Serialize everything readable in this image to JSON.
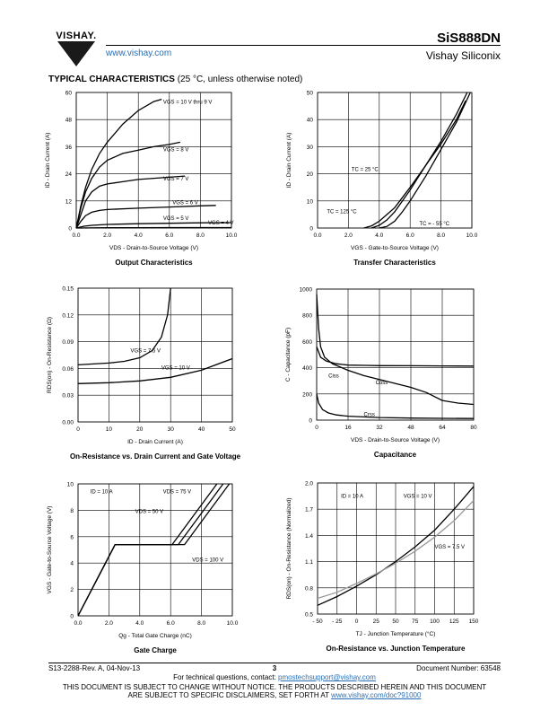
{
  "header": {
    "logo_text": "VISHAY.",
    "url": "www.vishay.com",
    "part_number": "SiS888DN",
    "company": "Vishay Siliconix"
  },
  "section": {
    "title": "TYPICAL CHARACTERISTICS",
    "condition": "(25 °C, unless otherwise noted)"
  },
  "chart_data": [
    {
      "type": "line",
      "title": "Output Characteristics",
      "xlabel": "VDS - Drain-to-Source Voltage (V)",
      "ylabel": "ID - Drain Current (A)",
      "xlim": [
        0,
        10
      ],
      "ylim": [
        0,
        60
      ],
      "xticks": [
        "0.0",
        "2.0",
        "4.0",
        "6.0",
        "8.0",
        "10.0"
      ],
      "yticks": [
        "0",
        "12",
        "24",
        "36",
        "48",
        "60"
      ],
      "series": [
        {
          "name": "VGS = 10 V thru 9 V",
          "x": [
            0,
            0.3,
            0.6,
            1,
            1.5,
            2,
            2.5,
            3,
            3.5,
            4,
            4.5,
            5,
            5.5
          ],
          "y": [
            0,
            10,
            18,
            26,
            33,
            38,
            42,
            46,
            49,
            52,
            54,
            56,
            57
          ]
        },
        {
          "name": "VGS = 8 V",
          "x": [
            0,
            0.3,
            0.6,
            1,
            1.5,
            2,
            2.5,
            3,
            4,
            5,
            6,
            6.7
          ],
          "y": [
            0,
            9,
            16,
            22,
            27,
            30,
            31.5,
            33,
            34.5,
            36,
            37,
            38
          ]
        },
        {
          "name": "VGS = 7 V",
          "x": [
            0,
            0.3,
            0.6,
            1,
            1.5,
            2,
            3,
            4,
            5,
            6,
            7
          ],
          "y": [
            0,
            6,
            12,
            16,
            18.5,
            19.5,
            20.5,
            21.5,
            22,
            22.5,
            23
          ]
        },
        {
          "name": "VGS = 6 V",
          "x": [
            0,
            0.3,
            0.6,
            1,
            1.5,
            2,
            4,
            6,
            8,
            9
          ],
          "y": [
            0,
            3,
            5.5,
            7,
            7.8,
            8.2,
            8.8,
            9.3,
            9.8,
            10
          ]
        },
        {
          "name": "VGS = 5 V",
          "x": [
            0,
            0.5,
            1,
            2,
            4,
            6,
            8,
            10
          ],
          "y": [
            0,
            0.8,
            1.2,
            1.6,
            1.9,
            2.1,
            2.3,
            2.4
          ]
        },
        {
          "name": "VGS = 4 V",
          "x": [
            0,
            2,
            4,
            6,
            8,
            10
          ],
          "y": [
            0,
            0.1,
            0.15,
            0.2,
            0.2,
            0.2
          ]
        }
      ],
      "annotations": [
        "VGS = 10 V thru 9 V",
        "VGS = 8 V",
        "VGS = 7 V",
        "VGS = 6 V",
        "VGS = 5 V",
        "VGS = 4 V"
      ]
    },
    {
      "type": "line",
      "title": "Transfer Characteristics",
      "xlabel": "VGS - Gate-to-Source Voltage (V)",
      "ylabel": "ID - Drain Current (A)",
      "xlim": [
        0,
        10
      ],
      "ylim": [
        0,
        50
      ],
      "xticks": [
        "0.0",
        "2.0",
        "4.0",
        "6.0",
        "8.0",
        "10.0"
      ],
      "yticks": [
        "0",
        "10",
        "20",
        "30",
        "40",
        "50"
      ],
      "series": [
        {
          "name": "TC = 25 °C",
          "x": [
            3.5,
            4.0,
            4.5,
            5,
            6,
            7,
            8,
            9,
            9.7
          ],
          "y": [
            0,
            1,
            3,
            6,
            14,
            23,
            32,
            42,
            50
          ]
        },
        {
          "name": "TC = 125 °C",
          "x": [
            3.0,
            3.5,
            4.0,
            4.5,
            5,
            6,
            7,
            8,
            9,
            9.6
          ],
          "y": [
            0,
            0.8,
            2.5,
            5,
            7.5,
            15,
            23,
            31,
            40,
            47
          ]
        },
        {
          "name": "TC = - 55 °C",
          "x": [
            4.0,
            4.5,
            5,
            5.5,
            6,
            7,
            8,
            9,
            9.9
          ],
          "y": [
            0,
            0.6,
            2.5,
            6,
            10,
            19,
            29,
            39,
            50
          ]
        }
      ],
      "annotations": [
        "TC = 25 °C",
        "TC = 125 °C",
        "TC = - 55 °C"
      ]
    },
    {
      "type": "line",
      "title": "On-Resistance vs. Drain Current and Gate Voltage",
      "xlabel": "ID - Drain Current (A)",
      "ylabel": "RDS(on) - On-Resistance (Ω)",
      "xlim": [
        0,
        50
      ],
      "ylim": [
        0,
        0.15
      ],
      "xticks": [
        "0",
        "10",
        "20",
        "30",
        "40",
        "50"
      ],
      "yticks": [
        "0.00",
        "0.03",
        "0.06",
        "0.09",
        "0.12",
        "0.15"
      ],
      "series": [
        {
          "name": "VGS = 7.5 V",
          "x": [
            0,
            5,
            10,
            15,
            20,
            24,
            27,
            29,
            30
          ],
          "y": [
            0.064,
            0.065,
            0.066,
            0.068,
            0.072,
            0.08,
            0.095,
            0.12,
            0.15
          ]
        },
        {
          "name": "VGS = 10 V",
          "x": [
            0,
            10,
            20,
            30,
            40,
            50
          ],
          "y": [
            0.043,
            0.044,
            0.046,
            0.05,
            0.058,
            0.071
          ]
        }
      ],
      "annotations": [
        "VGS = 7.5 V",
        "VGS = 10 V"
      ]
    },
    {
      "type": "line",
      "title": "Capacitance",
      "xlabel": "VDS - Drain-to-Source Voltage (V)",
      "ylabel": "C - Capacitance (pF)",
      "xlim": [
        0,
        80
      ],
      "ylim": [
        0,
        1000
      ],
      "xticks": [
        "0",
        "16",
        "32",
        "48",
        "64",
        "80"
      ],
      "yticks": [
        "0",
        "200",
        "400",
        "600",
        "800",
        "1000"
      ],
      "series": [
        {
          "name": "Ciss",
          "x": [
            0,
            2,
            5,
            10,
            16,
            25,
            32,
            48,
            64,
            80
          ],
          "y": [
            560,
            480,
            450,
            430,
            420,
            418,
            416,
            415,
            414,
            412
          ]
        },
        {
          "name": "Coss",
          "x": [
            0,
            1,
            2,
            4,
            8,
            16,
            24,
            32,
            48,
            56,
            64,
            72,
            80
          ],
          "y": [
            960,
            700,
            560,
            480,
            430,
            380,
            340,
            310,
            250,
            210,
            150,
            130,
            120
          ]
        },
        {
          "name": "Crss",
          "x": [
            0,
            1,
            3,
            6,
            10,
            16,
            32,
            48,
            64,
            80
          ],
          "y": [
            200,
            130,
            80,
            55,
            40,
            30,
            20,
            16,
            14,
            12
          ]
        }
      ],
      "annotations": [
        "Ciss",
        "Coss",
        "Crss"
      ]
    },
    {
      "type": "line",
      "title": "Gate Charge",
      "xlabel": "Qg - Total Gate Charge (nC)",
      "ylabel": "VGS - Gate-to-Source Voltage (V)",
      "xlim": [
        0,
        10
      ],
      "ylim": [
        0,
        10
      ],
      "xticks": [
        "0.0",
        "2.0",
        "4.0",
        "6.0",
        "8.0",
        "10.0"
      ],
      "yticks": [
        "0",
        "2",
        "4",
        "6",
        "8",
        "10"
      ],
      "series": [
        {
          "name": "VDS = 50 V",
          "x": [
            0,
            2.4,
            6.1,
            9.0
          ],
          "y": [
            0,
            5.4,
            5.4,
            10
          ]
        },
        {
          "name": "VDS = 75 V",
          "x": [
            0,
            2.4,
            6.5,
            9.4
          ],
          "y": [
            0,
            5.4,
            5.4,
            10
          ]
        },
        {
          "name": "VDS = 100 V",
          "x": [
            0,
            2.4,
            6.9,
            9.8
          ],
          "y": [
            0,
            5.4,
            5.4,
            10
          ]
        }
      ],
      "annotations": [
        "ID = 10 A",
        "VDS = 75 V",
        "VDS = 50 V",
        "VDS = 100 V"
      ]
    },
    {
      "type": "line",
      "title": "On-Resistance vs. Junction Temperature",
      "xlabel": "TJ - Junction Temperature (°C)",
      "ylabel": "RDS(on) - On-Resistance (Normalized)",
      "xlim": [
        -50,
        150
      ],
      "ylim": [
        0.5,
        2.0
      ],
      "xticks": [
        "- 50",
        "- 25",
        "0",
        "25",
        "50",
        "75",
        "100",
        "125",
        "150"
      ],
      "yticks": [
        "0.5",
        "0.8",
        "1.1",
        "1.4",
        "1.7",
        "2.0"
      ],
      "series": [
        {
          "name": "VGS = 10 V",
          "x": [
            -50,
            -25,
            0,
            25,
            50,
            75,
            100,
            125,
            150
          ],
          "y": [
            0.6,
            0.7,
            0.82,
            0.95,
            1.1,
            1.27,
            1.46,
            1.7,
            1.96
          ]
        },
        {
          "name": "VGS = 7.5 V",
          "x": [
            -50,
            -25,
            0,
            25,
            50,
            75,
            100,
            125,
            150
          ],
          "y": [
            0.68,
            0.75,
            0.85,
            0.96,
            1.08,
            1.22,
            1.38,
            1.57,
            1.8
          ]
        }
      ],
      "annotations": [
        "ID = 10 A",
        "VGS = 10 V",
        "VGS = 7.5 V"
      ]
    }
  ],
  "footer": {
    "doc_rev": "S13-2288-Rev. A, 04-Nov-13",
    "page": "3",
    "doc_number": "Document Number: 63548",
    "tech_q": "For technical questions, contact: ",
    "tech_email": "pmostechsupport@vishay.com",
    "notice1": "THIS DOCUMENT IS SUBJECT TO CHANGE WITHOUT NOTICE. THE PRODUCTS DESCRIBED HEREIN AND THIS DOCUMENT",
    "notice2": "ARE SUBJECT TO SPECIFIC DISCLAIMERS, SET FORTH AT ",
    "notice_link": "www.vishay.com/doc?91000"
  },
  "colors": {
    "accent": "#2a6fb5",
    "logo": "#1a1a1a",
    "gray_series": "#999999"
  }
}
